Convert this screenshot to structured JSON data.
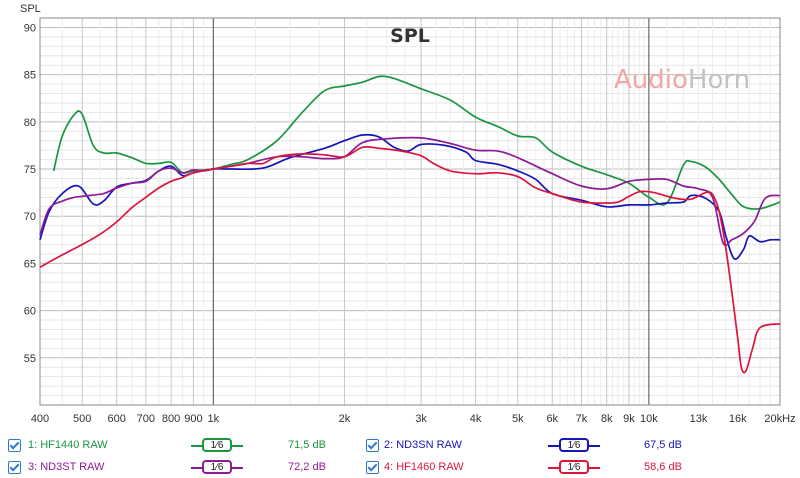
{
  "chart_data": {
    "type": "line",
    "title": "SPL",
    "ylabel": "SPL",
    "xlabel": "",
    "x_scale": "log",
    "xlim": [
      400,
      20000
    ],
    "ylim": [
      50,
      91
    ],
    "grid": true,
    "yticks": [
      90,
      85,
      80,
      75,
      70,
      65,
      60,
      55
    ],
    "xticks": [
      {
        "v": 400,
        "label": "400"
      },
      {
        "v": 500,
        "label": "500"
      },
      {
        "v": 600,
        "label": "600"
      },
      {
        "v": 700,
        "label": "700"
      },
      {
        "v": 800,
        "label": "800"
      },
      {
        "v": 900,
        "label": "900"
      },
      {
        "v": 1000,
        "label": "1k"
      },
      {
        "v": 2000,
        "label": "2k"
      },
      {
        "v": 3000,
        "label": "3k"
      },
      {
        "v": 4000,
        "label": "4k"
      },
      {
        "v": 5000,
        "label": "5k"
      },
      {
        "v": 6000,
        "label": "6k"
      },
      {
        "v": 7000,
        "label": "7k"
      },
      {
        "v": 8000,
        "label": "8k"
      },
      {
        "v": 9000,
        "label": "9k"
      },
      {
        "v": 10000,
        "label": "10k"
      },
      {
        "v": 13000,
        "label": "13k"
      },
      {
        "v": 16000,
        "label": "16k"
      },
      {
        "v": 20000,
        "label": "20kHz"
      }
    ],
    "series": [
      {
        "name": "HF1440 RAW",
        "color": "#1a9641",
        "points": [
          [
            430,
            74.8
          ],
          [
            450,
            78.5
          ],
          [
            480,
            80.8
          ],
          [
            500,
            80.8
          ],
          [
            530,
            77.5
          ],
          [
            560,
            76.7
          ],
          [
            600,
            76.7
          ],
          [
            650,
            76.2
          ],
          [
            700,
            75.6
          ],
          [
            750,
            75.6
          ],
          [
            800,
            75.7
          ],
          [
            850,
            74.6
          ],
          [
            900,
            74.8
          ],
          [
            1000,
            75.0
          ],
          [
            1100,
            75.5
          ],
          [
            1200,
            76.0
          ],
          [
            1400,
            78.0
          ],
          [
            1600,
            81.0
          ],
          [
            1800,
            83.3
          ],
          [
            2000,
            83.8
          ],
          [
            2200,
            84.2
          ],
          [
            2400,
            84.8
          ],
          [
            2600,
            84.6
          ],
          [
            3000,
            83.5
          ],
          [
            3500,
            82.3
          ],
          [
            4000,
            80.5
          ],
          [
            4500,
            79.5
          ],
          [
            5000,
            78.5
          ],
          [
            5500,
            78.3
          ],
          [
            6000,
            76.8
          ],
          [
            7000,
            75.3
          ],
          [
            8000,
            74.4
          ],
          [
            9000,
            73.5
          ],
          [
            10000,
            72.0
          ],
          [
            11000,
            71.4
          ],
          [
            12000,
            75.4
          ],
          [
            12500,
            75.8
          ],
          [
            13500,
            75.2
          ],
          [
            14500,
            73.9
          ],
          [
            15500,
            72.3
          ],
          [
            16500,
            71.0
          ],
          [
            18000,
            70.8
          ],
          [
            20000,
            71.5
          ]
        ]
      },
      {
        "name": "ND3SN RAW",
        "color": "#1515b8",
        "points": [
          [
            400,
            67.5
          ],
          [
            420,
            70.5
          ],
          [
            450,
            72.4
          ],
          [
            490,
            73.2
          ],
          [
            530,
            71.3
          ],
          [
            560,
            71.6
          ],
          [
            600,
            73.1
          ],
          [
            650,
            73.5
          ],
          [
            700,
            73.8
          ],
          [
            750,
            74.8
          ],
          [
            800,
            75.3
          ],
          [
            850,
            74.3
          ],
          [
            900,
            74.6
          ],
          [
            1000,
            75.0
          ],
          [
            1100,
            75.0
          ],
          [
            1300,
            75.1
          ],
          [
            1500,
            76.2
          ],
          [
            1800,
            77.2
          ],
          [
            2000,
            78.0
          ],
          [
            2200,
            78.6
          ],
          [
            2400,
            78.4
          ],
          [
            2600,
            77.3
          ],
          [
            2800,
            76.9
          ],
          [
            3000,
            77.6
          ],
          [
            3400,
            77.5
          ],
          [
            3800,
            76.8
          ],
          [
            4000,
            75.9
          ],
          [
            4500,
            75.5
          ],
          [
            5000,
            74.8
          ],
          [
            5500,
            73.9
          ],
          [
            6000,
            72.4
          ],
          [
            7000,
            71.7
          ],
          [
            8000,
            71.0
          ],
          [
            9000,
            71.2
          ],
          [
            10000,
            71.2
          ],
          [
            11000,
            71.4
          ],
          [
            12000,
            71.5
          ],
          [
            12500,
            72.2
          ],
          [
            13500,
            71.9
          ],
          [
            14500,
            70.5
          ],
          [
            15000,
            68.0
          ],
          [
            15700,
            65.5
          ],
          [
            16500,
            66.5
          ],
          [
            17000,
            67.9
          ],
          [
            18000,
            67.3
          ],
          [
            19000,
            67.5
          ],
          [
            20000,
            67.5
          ]
        ]
      },
      {
        "name": "ND3ST RAW",
        "color": "#8e1a96",
        "points": [
          [
            400,
            68.0
          ],
          [
            420,
            70.8
          ],
          [
            450,
            71.6
          ],
          [
            480,
            72.0
          ],
          [
            520,
            72.2
          ],
          [
            560,
            72.4
          ],
          [
            600,
            73.0
          ],
          [
            650,
            73.5
          ],
          [
            700,
            73.7
          ],
          [
            750,
            74.8
          ],
          [
            800,
            75.1
          ],
          [
            850,
            74.6
          ],
          [
            900,
            74.9
          ],
          [
            950,
            74.8
          ],
          [
            1000,
            75.0
          ],
          [
            1100,
            75.3
          ],
          [
            1200,
            75.6
          ],
          [
            1400,
            76.3
          ],
          [
            1600,
            76.3
          ],
          [
            1800,
            76.1
          ],
          [
            2000,
            76.3
          ],
          [
            2200,
            77.8
          ],
          [
            2500,
            78.2
          ],
          [
            3000,
            78.3
          ],
          [
            3500,
            77.7
          ],
          [
            4000,
            77.0
          ],
          [
            4500,
            76.9
          ],
          [
            5000,
            76.2
          ],
          [
            6000,
            74.5
          ],
          [
            7000,
            73.2
          ],
          [
            8000,
            72.9
          ],
          [
            9000,
            73.7
          ],
          [
            10000,
            73.9
          ],
          [
            11000,
            73.9
          ],
          [
            12000,
            73.2
          ],
          [
            13000,
            72.9
          ],
          [
            14000,
            72.0
          ],
          [
            14800,
            67.2
          ],
          [
            15500,
            67.5
          ],
          [
            16500,
            68.2
          ],
          [
            17500,
            69.5
          ],
          [
            18500,
            71.9
          ],
          [
            20000,
            72.2
          ]
        ]
      },
      {
        "name": "HF1460 RAW",
        "color": "#dc143c",
        "points": [
          [
            400,
            64.6
          ],
          [
            450,
            65.9
          ],
          [
            500,
            67.0
          ],
          [
            550,
            68.1
          ],
          [
            600,
            69.4
          ],
          [
            650,
            70.9
          ],
          [
            700,
            72.0
          ],
          [
            750,
            73.0
          ],
          [
            800,
            73.7
          ],
          [
            850,
            74.1
          ],
          [
            900,
            74.6
          ],
          [
            1000,
            75.0
          ],
          [
            1100,
            75.3
          ],
          [
            1200,
            75.6
          ],
          [
            1300,
            75.6
          ],
          [
            1400,
            76.3
          ],
          [
            1600,
            76.6
          ],
          [
            1800,
            76.5
          ],
          [
            2000,
            76.3
          ],
          [
            2200,
            77.3
          ],
          [
            2400,
            77.2
          ],
          [
            2700,
            76.9
          ],
          [
            3000,
            76.4
          ],
          [
            3200,
            75.6
          ],
          [
            3500,
            74.8
          ],
          [
            4000,
            74.5
          ],
          [
            4500,
            74.6
          ],
          [
            5000,
            74.2
          ],
          [
            5500,
            73.0
          ],
          [
            6000,
            72.4
          ],
          [
            7000,
            71.5
          ],
          [
            8000,
            71.4
          ],
          [
            8500,
            71.5
          ],
          [
            9000,
            72.1
          ],
          [
            9500,
            72.6
          ],
          [
            10000,
            72.6
          ],
          [
            10500,
            72.4
          ],
          [
            11500,
            71.9
          ],
          [
            12500,
            71.8
          ],
          [
            13500,
            72.5
          ],
          [
            14000,
            72.3
          ],
          [
            14500,
            70.5
          ],
          [
            15000,
            66.8
          ],
          [
            15500,
            62.0
          ],
          [
            16000,
            57.0
          ],
          [
            16300,
            54.0
          ],
          [
            16700,
            53.6
          ],
          [
            17300,
            56.0
          ],
          [
            18000,
            58.2
          ],
          [
            20000,
            58.6
          ]
        ]
      }
    ]
  },
  "watermark": {
    "part1": "Audio",
    "part2": "Horn"
  },
  "legend": [
    {
      "label": "1: HF1440 RAW",
      "smoothing": "1⁄6",
      "value": "71,5 dB",
      "color": "#1a9641"
    },
    {
      "label": "2: ND3SN RAW",
      "smoothing": "1⁄6",
      "value": "67,5 dB",
      "color": "#1515b8"
    },
    {
      "label": "3: ND3ST RAW",
      "smoothing": "1⁄6",
      "value": "72,2 dB",
      "color": "#8e1a96"
    },
    {
      "label": "4: HF1460 RAW",
      "smoothing": "1⁄6",
      "value": "58,6 dB",
      "color": "#dc143c"
    }
  ]
}
